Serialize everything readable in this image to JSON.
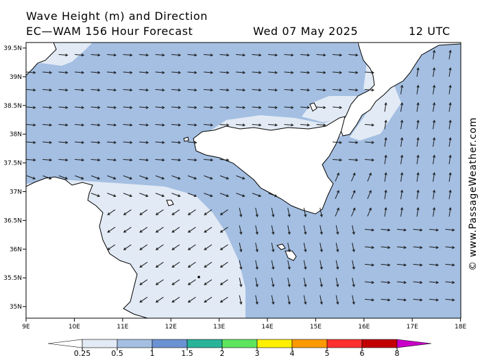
{
  "header": {
    "title": "Wave Height (m) and Direction",
    "model": "EC—WAM 156 Hour Forecast",
    "date": "Wed 07 May 2025",
    "time": "12 UTC"
  },
  "credit": "© www.PassageWeather.com",
  "map": {
    "lon_labels": [
      "9E",
      "10E",
      "11E",
      "12E",
      "13E",
      "14E",
      "15E",
      "16E",
      "17E",
      "18E"
    ],
    "lat_labels": [
      "39.5N",
      "39N",
      "38.5N",
      "38N",
      "37.5N",
      "37N",
      "36.5N",
      "36N",
      "35.5N",
      "35N"
    ],
    "colors": {
      "land": "#ffffff",
      "sea_low": "#e2eaf5",
      "sea_main": "#a4bfe2",
      "arrow": "#1a1a1a"
    }
  },
  "legend": {
    "labels": [
      "0.25",
      "0.5",
      "1",
      "1.5",
      "2",
      "3",
      "4",
      "5",
      "6",
      "8"
    ],
    "colors": [
      "#e2eaf5",
      "#a4bfe2",
      "#6b93d3",
      "#29b49a",
      "#5ee55e",
      "#fff000",
      "#ff9a00",
      "#ff3030",
      "#c20000",
      "#c800c8"
    ]
  }
}
